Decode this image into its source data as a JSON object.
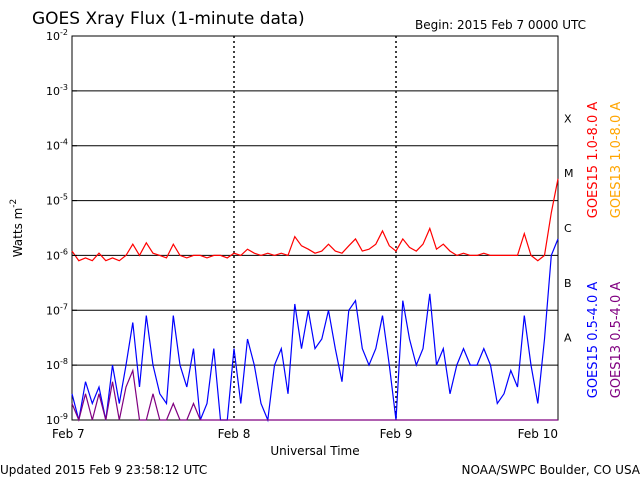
{
  "header": {
    "title": "GOES Xray Flux (1-minute data)",
    "begin": "Begin:  2015 Feb 7 0000 UTC"
  },
  "footer": {
    "updated": "Updated 2015 Feb  9 23:58:12 UTC",
    "credit": "NOAA/SWPC Boulder, CO USA"
  },
  "chart_data": {
    "type": "line",
    "title": "GOES Xray Flux (1-minute data)",
    "xlabel": "Universal Time",
    "ylabel": "Watts m-2",
    "ylabel_base": "Watts m",
    "ylabel_exp": "-2",
    "y_scale": "log",
    "ylim": [
      1e-09,
      0.01
    ],
    "x_range_hours": [
      0,
      72
    ],
    "x_ticks": [
      {
        "label": "Feb 7",
        "hour": 0
      },
      {
        "label": "Feb 8",
        "hour": 24
      },
      {
        "label": "Feb 9",
        "hour": 48
      },
      {
        "label": "Feb 10",
        "hour": 72
      }
    ],
    "y_ticks": [
      {
        "exp": -9,
        "base": "10",
        "sup": "-9"
      },
      {
        "exp": -8,
        "base": "10",
        "sup": "-8"
      },
      {
        "exp": -7,
        "base": "10",
        "sup": "-7"
      },
      {
        "exp": -6,
        "base": "10",
        "sup": "-6"
      },
      {
        "exp": -5,
        "base": "10",
        "sup": "-5"
      },
      {
        "exp": -4,
        "base": "10",
        "sup": "-4"
      },
      {
        "exp": -3,
        "base": "10",
        "sup": "-3"
      },
      {
        "exp": -2,
        "base": "10",
        "sup": "-2"
      }
    ],
    "flare_classes": [
      {
        "label": "A",
        "exp": -8
      },
      {
        "label": "B",
        "exp": -7
      },
      {
        "label": "C",
        "exp": -6
      },
      {
        "label": "M",
        "exp": -5
      },
      {
        "label": "X",
        "exp": -4
      }
    ],
    "grid": "horizontal lines at each decade; dotted vertical lines at day boundaries",
    "legend_position": "right",
    "series": [
      {
        "name": "GOES15 1.0-8.0 A",
        "color": "#ff0000",
        "points": [
          [
            0,
            1.2e-06
          ],
          [
            1,
            8e-07
          ],
          [
            2,
            9e-07
          ],
          [
            3,
            8e-07
          ],
          [
            4,
            1.1e-06
          ],
          [
            5,
            8e-07
          ],
          [
            6,
            9e-07
          ],
          [
            7,
            8e-07
          ],
          [
            8,
            1e-06
          ],
          [
            9,
            1.6e-06
          ],
          [
            10,
            1e-06
          ],
          [
            11,
            1.7e-06
          ],
          [
            12,
            1.1e-06
          ],
          [
            13,
            1e-06
          ],
          [
            14,
            9e-07
          ],
          [
            15,
            1.6e-06
          ],
          [
            16,
            1e-06
          ],
          [
            17,
            9e-07
          ],
          [
            18,
            1e-06
          ],
          [
            19,
            1e-06
          ],
          [
            20,
            9e-07
          ],
          [
            21,
            1e-06
          ],
          [
            22,
            1e-06
          ],
          [
            23,
            9e-07
          ],
          [
            24,
            1.1e-06
          ],
          [
            25,
            1e-06
          ],
          [
            26,
            1.3e-06
          ],
          [
            27,
            1.1e-06
          ],
          [
            28,
            1e-06
          ],
          [
            29,
            1.1e-06
          ],
          [
            30,
            1e-06
          ],
          [
            31,
            1.1e-06
          ],
          [
            32,
            1e-06
          ],
          [
            33,
            2.2e-06
          ],
          [
            34,
            1.5e-06
          ],
          [
            35,
            1.3e-06
          ],
          [
            36,
            1.1e-06
          ],
          [
            37,
            1.2e-06
          ],
          [
            38,
            1.6e-06
          ],
          [
            39,
            1.2e-06
          ],
          [
            40,
            1.1e-06
          ],
          [
            41,
            1.5e-06
          ],
          [
            42,
            2e-06
          ],
          [
            43,
            1.2e-06
          ],
          [
            44,
            1.3e-06
          ],
          [
            45,
            1.6e-06
          ],
          [
            46,
            2.8e-06
          ],
          [
            47,
            1.5e-06
          ],
          [
            48,
            1.2e-06
          ],
          [
            49,
            2e-06
          ],
          [
            50,
            1.4e-06
          ],
          [
            51,
            1.2e-06
          ],
          [
            52,
            1.6e-06
          ],
          [
            53,
            3.1e-06
          ],
          [
            54,
            1.3e-06
          ],
          [
            55,
            1.6e-06
          ],
          [
            56,
            1.2e-06
          ],
          [
            57,
            1e-06
          ],
          [
            58,
            1.1e-06
          ],
          [
            59,
            1e-06
          ],
          [
            60,
            1e-06
          ],
          [
            61,
            1.1e-06
          ],
          [
            62,
            1e-06
          ],
          [
            63,
            1e-06
          ],
          [
            64,
            1e-06
          ],
          [
            65,
            1e-06
          ],
          [
            66,
            1e-06
          ],
          [
            67,
            2.5e-06
          ],
          [
            68,
            1e-06
          ],
          [
            69,
            8e-07
          ],
          [
            70,
            1e-06
          ],
          [
            71,
            6e-06
          ],
          [
            72,
            2.5e-05
          ]
        ]
      },
      {
        "name": "GOES13 1.0-8.0 A",
        "color": "#ffa500",
        "points": []
      },
      {
        "name": "GOES15 0.5-4.0 A",
        "color": "#0000ff",
        "points": [
          [
            0,
            3e-09
          ],
          [
            1,
            1e-09
          ],
          [
            2,
            5e-09
          ],
          [
            3,
            2e-09
          ],
          [
            4,
            4e-09
          ],
          [
            5,
            1e-09
          ],
          [
            6,
            1e-08
          ],
          [
            7,
            2e-09
          ],
          [
            8,
            1e-08
          ],
          [
            9,
            6e-08
          ],
          [
            10,
            4e-09
          ],
          [
            11,
            8e-08
          ],
          [
            12,
            1e-08
          ],
          [
            13,
            3e-09
          ],
          [
            14,
            2e-09
          ],
          [
            15,
            8e-08
          ],
          [
            16,
            1e-08
          ],
          [
            17,
            4e-09
          ],
          [
            18,
            2e-08
          ],
          [
            19,
            1e-09
          ],
          [
            20,
            2e-09
          ],
          [
            21,
            2e-08
          ],
          [
            22,
            1e-09
          ],
          [
            23,
            1e-09
          ],
          [
            24,
            2e-08
          ],
          [
            25,
            2e-09
          ],
          [
            26,
            3e-08
          ],
          [
            27,
            1e-08
          ],
          [
            28,
            2e-09
          ],
          [
            29,
            1e-09
          ],
          [
            30,
            1e-08
          ],
          [
            31,
            2e-08
          ],
          [
            32,
            3e-09
          ],
          [
            33,
            1.3e-07
          ],
          [
            34,
            2e-08
          ],
          [
            35,
            1e-07
          ],
          [
            36,
            2e-08
          ],
          [
            37,
            3e-08
          ],
          [
            38,
            1e-07
          ],
          [
            39,
            2e-08
          ],
          [
            40,
            5e-09
          ],
          [
            41,
            1e-07
          ],
          [
            42,
            1.5e-07
          ],
          [
            43,
            2e-08
          ],
          [
            44,
            1e-08
          ],
          [
            45,
            2e-08
          ],
          [
            46,
            8e-08
          ],
          [
            47,
            1e-08
          ],
          [
            48,
            1e-09
          ],
          [
            49,
            1.5e-07
          ],
          [
            50,
            3e-08
          ],
          [
            51,
            1e-08
          ],
          [
            52,
            2e-08
          ],
          [
            53,
            2e-07
          ],
          [
            54,
            1e-08
          ],
          [
            55,
            2e-08
          ],
          [
            56,
            3e-09
          ],
          [
            57,
            1e-08
          ],
          [
            58,
            2e-08
          ],
          [
            59,
            1e-08
          ],
          [
            60,
            1e-08
          ],
          [
            61,
            2e-08
          ],
          [
            62,
            1e-08
          ],
          [
            63,
            2e-09
          ],
          [
            64,
            3e-09
          ],
          [
            65,
            8e-09
          ],
          [
            66,
            4e-09
          ],
          [
            67,
            8e-08
          ],
          [
            68,
            1e-08
          ],
          [
            69,
            2e-09
          ],
          [
            70,
            3e-08
          ],
          [
            71,
            1e-06
          ],
          [
            72,
            2e-06
          ]
        ]
      },
      {
        "name": "GOES13 0.5-4.0 A",
        "color": "#800080",
        "points": [
          [
            0,
            2e-09
          ],
          [
            1,
            1e-09
          ],
          [
            2,
            3e-09
          ],
          [
            3,
            1e-09
          ],
          [
            4,
            3e-09
          ],
          [
            5,
            1e-09
          ],
          [
            6,
            5e-09
          ],
          [
            7,
            1e-09
          ],
          [
            8,
            4e-09
          ],
          [
            9,
            8e-09
          ],
          [
            10,
            1e-09
          ],
          [
            11,
            1e-09
          ],
          [
            12,
            3e-09
          ],
          [
            13,
            1e-09
          ],
          [
            14,
            1e-09
          ],
          [
            15,
            2e-09
          ],
          [
            16,
            1e-09
          ],
          [
            17,
            1e-09
          ],
          [
            18,
            2e-09
          ],
          [
            19,
            1e-09
          ],
          [
            20,
            1e-09
          ],
          [
            21,
            1e-09
          ],
          [
            22,
            1e-09
          ],
          [
            23,
            1e-09
          ],
          [
            24,
            1e-09
          ],
          [
            25,
            1e-09
          ],
          [
            26,
            1e-09
          ],
          [
            27,
            1e-09
          ],
          [
            28,
            1e-09
          ],
          [
            29,
            1e-09
          ],
          [
            30,
            1e-09
          ],
          [
            31,
            1e-09
          ],
          [
            32,
            1e-09
          ],
          [
            33,
            1e-09
          ],
          [
            34,
            1e-09
          ],
          [
            35,
            1e-09
          ],
          [
            36,
            1e-09
          ],
          [
            37,
            1e-09
          ],
          [
            38,
            1e-09
          ],
          [
            39,
            1e-09
          ],
          [
            40,
            1e-09
          ],
          [
            41,
            1e-09
          ],
          [
            42,
            1e-09
          ],
          [
            43,
            1e-09
          ],
          [
            44,
            1e-09
          ],
          [
            45,
            1e-09
          ],
          [
            46,
            1e-09
          ],
          [
            47,
            1e-09
          ],
          [
            48,
            1e-09
          ],
          [
            49,
            1e-09
          ],
          [
            50,
            1e-09
          ],
          [
            51,
            1e-09
          ],
          [
            52,
            1e-09
          ],
          [
            53,
            1e-09
          ],
          [
            54,
            1e-09
          ],
          [
            55,
            1e-09
          ],
          [
            56,
            1e-09
          ],
          [
            57,
            1e-09
          ],
          [
            58,
            1e-09
          ],
          [
            59,
            1e-09
          ],
          [
            60,
            1e-09
          ],
          [
            61,
            1e-09
          ],
          [
            62,
            1e-09
          ],
          [
            63,
            1e-09
          ],
          [
            64,
            1e-09
          ],
          [
            65,
            1e-09
          ],
          [
            66,
            1e-09
          ],
          [
            67,
            1e-09
          ],
          [
            68,
            1e-09
          ],
          [
            69,
            1e-09
          ],
          [
            70,
            1e-09
          ],
          [
            71,
            1e-09
          ],
          [
            72,
            1e-09
          ]
        ]
      }
    ]
  }
}
